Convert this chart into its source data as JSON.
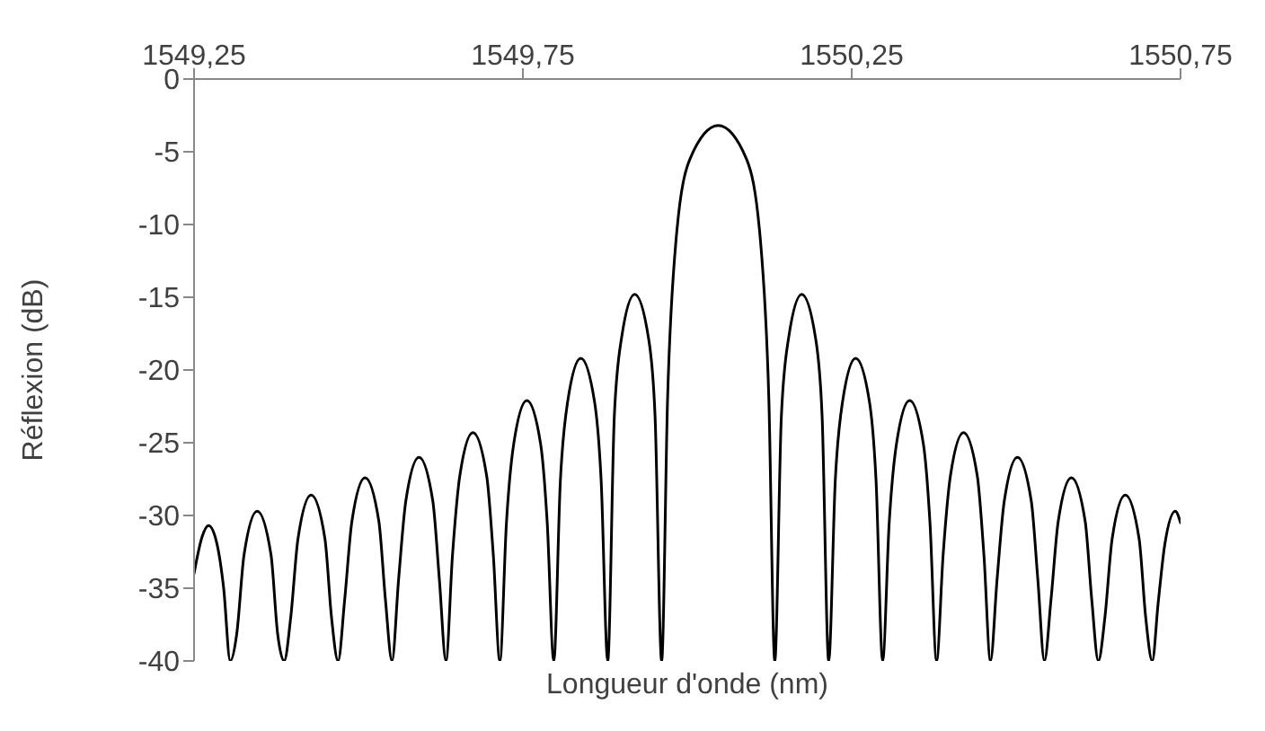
{
  "chart_data": {
    "type": "line",
    "xlabel": "Longueur d'onde (nm)",
    "ylabel": "Réflexion (dB)",
    "xlim": [
      1549.25,
      1550.75
    ],
    "xticks": [
      {
        "value": 1549.25,
        "label": "1549,25"
      },
      {
        "value": 1549.75,
        "label": "1549,75"
      },
      {
        "value": 1550.25,
        "label": "1550,25"
      },
      {
        "value": 1550.75,
        "label": "1550,75"
      }
    ],
    "ylim": [
      -40,
      0
    ],
    "yticks": [
      0,
      -5,
      -10,
      -15,
      -20,
      -25,
      -30,
      -35,
      -40
    ],
    "x": [
      1549.25,
      1549.262,
      1549.272,
      1549.284,
      1549.295,
      1549.305,
      1549.315,
      1549.326,
      1549.346,
      1549.367,
      1549.377,
      1549.387,
      1549.397,
      1549.408,
      1549.428,
      1549.449,
      1549.459,
      1549.469,
      1549.479,
      1549.49,
      1549.51,
      1549.531,
      1549.541,
      1549.551,
      1549.561,
      1549.572,
      1549.592,
      1549.613,
      1549.623,
      1549.633,
      1549.643,
      1549.654,
      1549.674,
      1549.695,
      1549.705,
      1549.715,
      1549.725,
      1549.736,
      1549.756,
      1549.777,
      1549.787,
      1549.797,
      1549.807,
      1549.818,
      1549.838,
      1549.859,
      1549.869,
      1549.879,
      1549.889,
      1549.9,
      1549.92,
      1549.941,
      1549.951,
      1549.961,
      1549.97,
      1549.983,
      1550.004,
      1550.047,
      1550.09,
      1550.111,
      1550.124,
      1550.133,
      1550.143,
      1550.154,
      1550.174,
      1550.195,
      1550.205,
      1550.215,
      1550.225,
      1550.236,
      1550.256,
      1550.277,
      1550.287,
      1550.297,
      1550.307,
      1550.318,
      1550.338,
      1550.359,
      1550.369,
      1550.379,
      1550.389,
      1550.4,
      1550.42,
      1550.441,
      1550.451,
      1550.461,
      1550.471,
      1550.482,
      1550.502,
      1550.523,
      1550.533,
      1550.543,
      1550.553,
      1550.564,
      1550.584,
      1550.605,
      1550.615,
      1550.625,
      1550.635,
      1550.646,
      1550.666,
      1550.687,
      1550.697,
      1550.707,
      1550.716,
      1550.726,
      1550.742,
      1550.75
    ],
    "series": [
      {
        "color": "#000000",
        "values": [
          -34,
          -31.5,
          -30.7,
          -31.8,
          -35,
          -40,
          -38.1,
          -32.7,
          -29.7,
          -32.7,
          -38.1,
          -40,
          -37,
          -31.6,
          -28.6,
          -31.6,
          -37,
          -40,
          -35.8,
          -30.4,
          -27.4,
          -30.4,
          -35.8,
          -40,
          -34.4,
          -29,
          -26,
          -29,
          -34.4,
          -40,
          -32.7,
          -27.3,
          -24.3,
          -27.3,
          -32.7,
          -40,
          -30.5,
          -25.1,
          -22.1,
          -25.1,
          -30.5,
          -40,
          -27.6,
          -22.2,
          -19.2,
          -22.2,
          -27.6,
          -40,
          -23.2,
          -17.8,
          -14.8,
          -17.8,
          -23.2,
          -40,
          -22,
          -11,
          -5.5,
          -3.2,
          -5.5,
          -11,
          -22,
          -40,
          -23.2,
          -17.8,
          -14.8,
          -17.8,
          -23.2,
          -40,
          -27.6,
          -22.2,
          -19.2,
          -22.2,
          -27.6,
          -40,
          -30.5,
          -25.1,
          -22.1,
          -25.1,
          -30.5,
          -40,
          -32.7,
          -27.3,
          -24.3,
          -27.3,
          -32.7,
          -40,
          -34.4,
          -29,
          -26,
          -29,
          -34.4,
          -40,
          -35.8,
          -30.4,
          -27.4,
          -30.4,
          -35.8,
          -40,
          -37,
          -31.6,
          -28.6,
          -31.6,
          -37,
          -40,
          -36,
          -32,
          -29.7,
          -30.5
        ]
      }
    ]
  }
}
